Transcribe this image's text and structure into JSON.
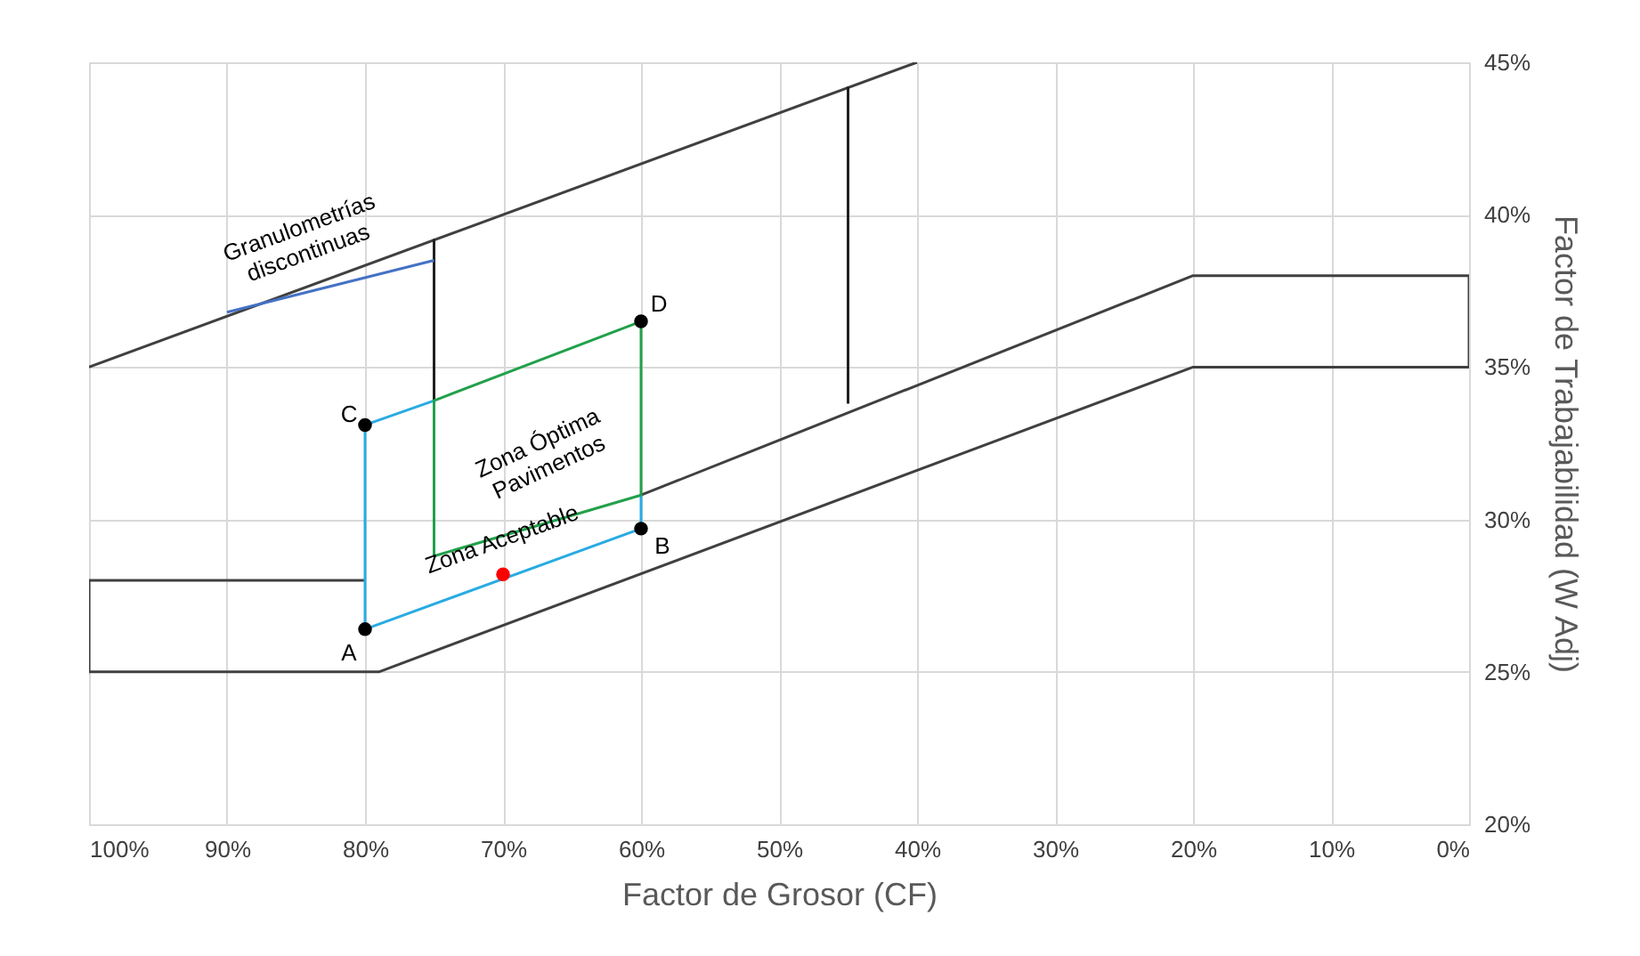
{
  "chart_data": {
    "type": "line",
    "xlabel": "Factor de Grosor (CF)",
    "ylabel": "Factor de Trabajabilidad (W Adj)",
    "xlim": [
      100,
      0
    ],
    "xticks": [
      {
        "value": 100,
        "label": "100%"
      },
      {
        "value": 90,
        "label": "90%"
      },
      {
        "value": 80,
        "label": "80%"
      },
      {
        "value": 70,
        "label": "70%"
      },
      {
        "value": 60,
        "label": "60%"
      },
      {
        "value": 50,
        "label": "50%"
      },
      {
        "value": 40,
        "label": "40%"
      },
      {
        "value": 30,
        "label": "30%"
      },
      {
        "value": 20,
        "label": "20%"
      },
      {
        "value": 10,
        "label": "10%"
      },
      {
        "value": 0,
        "label": "0%"
      }
    ],
    "ylim": [
      20,
      45
    ],
    "yticks": [
      {
        "value": 20,
        "label": "20%"
      },
      {
        "value": 25,
        "label": "25%"
      },
      {
        "value": 30,
        "label": "30%"
      },
      {
        "value": 35,
        "label": "35%"
      },
      {
        "value": 40,
        "label": "40%"
      },
      {
        "value": 45,
        "label": "45%"
      }
    ],
    "grid": true,
    "series": [
      {
        "type": "line",
        "color": "#404040",
        "x": [
          100,
          40
        ],
        "values": [
          35,
          45
        ]
      },
      {
        "type": "line",
        "color": "#404040",
        "x": [
          100,
          79,
          20,
          0,
          0,
          20,
          60
        ],
        "values": [
          25,
          25,
          35,
          35,
          38,
          38,
          30.8
        ]
      },
      {
        "type": "line",
        "color": "#404040",
        "x": [
          100,
          100,
          80
        ],
        "values": [
          25,
          28,
          28
        ]
      },
      {
        "type": "line",
        "color": "#202020",
        "x": [
          75,
          75
        ],
        "values": [
          33.9,
          39.2
        ]
      },
      {
        "type": "line",
        "color": "#202020",
        "x": [
          45,
          45
        ],
        "values": [
          33.8,
          44.2
        ]
      },
      {
        "type": "line",
        "color": "#29abe2",
        "x": [
          80,
          75
        ],
        "values": [
          33.1,
          33.9
        ]
      },
      {
        "type": "line",
        "color": "#29abe2",
        "x": [
          80,
          80,
          60,
          60
        ],
        "values": [
          33.1,
          26.4,
          29.7,
          30.8
        ]
      },
      {
        "type": "line",
        "color": "#22a04b",
        "x": [
          75,
          75,
          60,
          60
        ],
        "values": [
          28.8,
          33.9,
          36.5,
          30.8
        ]
      },
      {
        "type": "line",
        "color": "#22a04b",
        "x": [
          75,
          60
        ],
        "values": [
          28.8,
          30.8
        ]
      },
      {
        "type": "line",
        "color": "#4472c4",
        "x": [
          75,
          90
        ],
        "values": [
          38.5,
          36.8
        ]
      },
      {
        "type": "scatter",
        "color": "#000000",
        "x": [
          80,
          60,
          80,
          60
        ],
        "values": [
          26.4,
          29.7,
          33.1,
          36.5
        ]
      },
      {
        "type": "scatter",
        "color": "#ff0000",
        "x": [
          70
        ],
        "values": [
          28.2
        ]
      }
    ],
    "annotations": [
      "A",
      "B",
      "C",
      "D",
      "Zona Óptima\nPavimentos",
      "Zona Aceptable",
      "Granulometrías\ndiscontinuas"
    ]
  }
}
